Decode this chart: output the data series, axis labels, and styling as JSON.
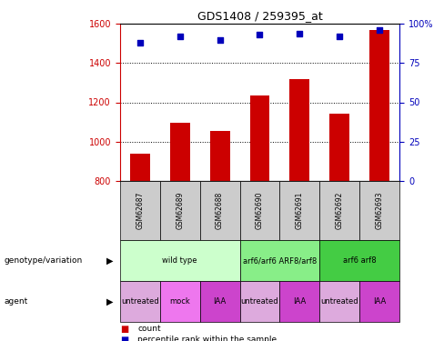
{
  "title": "GDS1408 / 259395_at",
  "samples": [
    "GSM62687",
    "GSM62689",
    "GSM62688",
    "GSM62690",
    "GSM62691",
    "GSM62692",
    "GSM62693"
  ],
  "bar_values": [
    940,
    1095,
    1055,
    1235,
    1320,
    1140,
    1570
  ],
  "dot_values": [
    88,
    92,
    90,
    93,
    94,
    92,
    96
  ],
  "ylim_left": [
    800,
    1600
  ],
  "ylim_right": [
    0,
    100
  ],
  "yticks_left": [
    800,
    1000,
    1200,
    1400,
    1600
  ],
  "yticks_right": [
    0,
    25,
    50,
    75,
    100
  ],
  "ytick_right_labels": [
    "0",
    "25",
    "50",
    "75",
    "100%"
  ],
  "bar_color": "#cc0000",
  "dot_color": "#0000bb",
  "bar_width": 0.5,
  "genotype_row": [
    {
      "label": "wild type",
      "start": 0,
      "end": 3,
      "color": "#ccffcc"
    },
    {
      "label": "arf6/arf6 ARF8/arf8",
      "start": 3,
      "end": 5,
      "color": "#88ee88"
    },
    {
      "label": "arf6 arf8",
      "start": 5,
      "end": 7,
      "color": "#44cc44"
    }
  ],
  "agent_row": [
    {
      "label": "untreated",
      "start": 0,
      "end": 1,
      "color": "#ddaadd"
    },
    {
      "label": "mock",
      "start": 1,
      "end": 2,
      "color": "#ee77ee"
    },
    {
      "label": "IAA",
      "start": 2,
      "end": 3,
      "color": "#cc44cc"
    },
    {
      "label": "untreated",
      "start": 3,
      "end": 4,
      "color": "#ddaadd"
    },
    {
      "label": "IAA",
      "start": 4,
      "end": 5,
      "color": "#cc44cc"
    },
    {
      "label": "untreated",
      "start": 5,
      "end": 6,
      "color": "#ddaadd"
    },
    {
      "label": "IAA",
      "start": 6,
      "end": 7,
      "color": "#cc44cc"
    }
  ],
  "legend_count_color": "#cc0000",
  "legend_dot_color": "#0000bb",
  "genotype_label": "genotype/variation",
  "agent_label": "agent",
  "sample_box_color": "#cccccc",
  "left_axis_color": "#cc0000",
  "right_axis_color": "#0000bb"
}
